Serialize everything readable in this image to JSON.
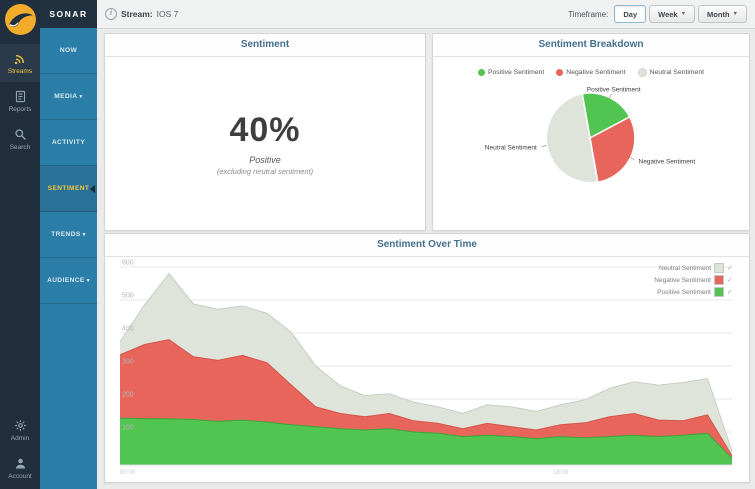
{
  "sidebar_rail": {
    "items": [
      {
        "label": "Streams",
        "icon": "streams-icon",
        "active": true
      },
      {
        "label": "Reports",
        "icon": "reports-icon",
        "active": false
      },
      {
        "label": "Search",
        "icon": "search-icon",
        "active": false
      }
    ],
    "bottom_items": [
      {
        "label": "Admin",
        "icon": "admin-icon",
        "active": false
      },
      {
        "label": "Account",
        "icon": "account-icon",
        "active": false
      }
    ]
  },
  "sidebar_menu": {
    "title": "SONAR",
    "items": [
      {
        "label": "NOW",
        "dropdown": false,
        "active": false
      },
      {
        "label": "MEDIA",
        "dropdown": true,
        "active": false
      },
      {
        "label": "ACTIVITY",
        "dropdown": false,
        "active": false
      },
      {
        "label": "SENTIMENT",
        "dropdown": false,
        "active": true
      },
      {
        "label": "TRENDS",
        "dropdown": true,
        "active": false
      },
      {
        "label": "AUDIENCE",
        "dropdown": true,
        "active": false
      }
    ]
  },
  "topbar": {
    "info_icon": "i",
    "stream_label": "Stream:",
    "stream_value": "IOS 7",
    "timeframe_label": "Timeframe:",
    "timeframe_options": [
      {
        "label": "Day",
        "active": true,
        "dropdown": false
      },
      {
        "label": "Week",
        "active": false,
        "dropdown": true
      },
      {
        "label": "Month",
        "active": false,
        "dropdown": true
      }
    ]
  },
  "cards": {
    "sentiment": {
      "title": "Sentiment",
      "value": "40%",
      "value_label": "Positive",
      "value_note": "(excluding neutral sentiment)"
    },
    "breakdown": {
      "title": "Sentiment Breakdown"
    },
    "over_time": {
      "title": "Sentiment Over Time"
    }
  },
  "colors": {
    "positive": "#52c452",
    "negative": "#e8655c",
    "neutral": "#dfe4da",
    "accent_yellow": "#f2c53d",
    "menu_blue": "#2b7ea8",
    "rail_navy": "#212e3d"
  },
  "chart_data": [
    {
      "type": "pie",
      "title": "Sentiment Breakdown",
      "labels": [
        "Positive Sentiment",
        "Negative Sentiment",
        "Neutral Sentiment"
      ],
      "values": [
        20,
        30,
        50
      ],
      "colors": [
        "#52c452",
        "#e8655c",
        "#dfe4da"
      ],
      "start_angle_deg": -10,
      "legend_position": "top"
    },
    {
      "type": "area",
      "stacked": true,
      "title": "Sentiment Over Time",
      "ylim": [
        0,
        600
      ],
      "y_ticks": [
        100,
        200,
        300,
        400,
        500,
        600
      ],
      "x_ticks": [
        {
          "i": 0,
          "label": "00:00"
        },
        {
          "i": 18,
          "label": "18:00"
        }
      ],
      "series": [
        {
          "name": "Positive Sentiment",
          "color": "#52c452",
          "edge": "#3aa83a",
          "values": [
            142,
            140,
            140,
            138,
            132,
            136,
            130,
            122,
            116,
            110,
            106,
            110,
            100,
            96,
            86,
            90,
            86,
            80,
            86,
            82,
            86,
            90,
            86,
            90,
            96,
            20
          ]
        },
        {
          "name": "Negative Sentiment",
          "color": "#e8655c",
          "edge": "#d4544b",
          "values": [
            192,
            225,
            240,
            190,
            185,
            196,
            180,
            120,
            60,
            46,
            40,
            46,
            34,
            30,
            24,
            36,
            30,
            26,
            36,
            46,
            60,
            66,
            50,
            44,
            56,
            8
          ]
        },
        {
          "name": "Neutral Sentiment",
          "color": "#dfe4da",
          "edge": "#c6cfc2",
          "values": [
            40,
            120,
            200,
            160,
            155,
            150,
            150,
            160,
            124,
            84,
            64,
            60,
            56,
            50,
            46,
            56,
            60,
            56,
            60,
            70,
            86,
            96,
            106,
            116,
            110,
            14
          ]
        }
      ],
      "legend": [
        {
          "label": "Neutral Sentiment",
          "checked": true
        },
        {
          "label": "Negative Sentiment",
          "checked": true
        },
        {
          "label": "Positive Sentiment",
          "checked": true
        }
      ],
      "legend_position": "top-right",
      "grid": true
    }
  ]
}
